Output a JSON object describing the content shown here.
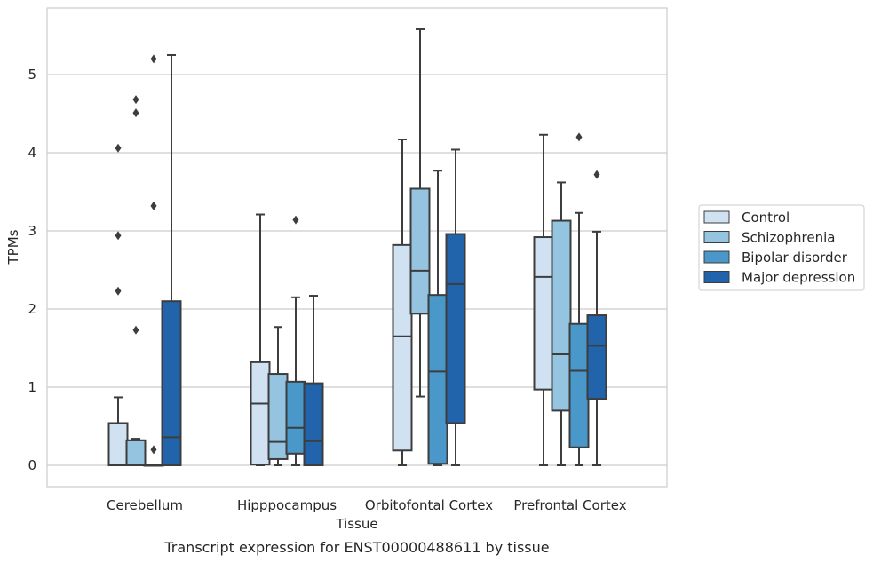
{
  "chart_data": {
    "type": "boxplot",
    "title": "",
    "caption": "Transcript expression for ENST00000488611 by tissue",
    "xlabel": "Tissue",
    "ylabel": "TPMs",
    "ylim": [
      -0.28,
      5.9
    ],
    "yticks": [
      0,
      1,
      2,
      3,
      4,
      5
    ],
    "grid": "horizontal",
    "legend_position": "right",
    "categories": [
      "Cerebellum",
      "Hipppocampus",
      "Orbitofontal Cortex",
      "Prefrontal Cortex"
    ],
    "series": [
      {
        "name": "Control",
        "color": "#d0e1f2",
        "boxes": [
          {
            "whislo": 0.0,
            "q1": 0.0,
            "med": 0.0,
            "q3": 0.54,
            "whishi": 0.87,
            "fliers": [
              2.23,
              2.94,
              4.06
            ]
          },
          {
            "whislo": 0.0,
            "q1": 0.01,
            "med": 0.79,
            "q3": 1.32,
            "whishi": 3.21,
            "fliers": []
          },
          {
            "whislo": 0.0,
            "q1": 0.19,
            "med": 1.65,
            "q3": 2.82,
            "whishi": 4.17,
            "fliers": []
          },
          {
            "whislo": 0.0,
            "q1": 0.97,
            "med": 2.41,
            "q3": 2.92,
            "whishi": 4.23,
            "fliers": []
          }
        ]
      },
      {
        "name": "Schizophrenia",
        "color": "#94c4df",
        "boxes": [
          {
            "whislo": 0.0,
            "q1": 0.0,
            "med": 0.32,
            "q3": 0.32,
            "whishi": 0.34,
            "fliers": [
              1.73,
              4.51,
              4.68
            ]
          },
          {
            "whislo": 0.0,
            "q1": 0.08,
            "med": 0.3,
            "q3": 1.17,
            "whishi": 1.77,
            "fliers": []
          },
          {
            "whislo": 0.88,
            "q1": 1.94,
            "med": 2.49,
            "q3": 3.54,
            "whishi": 5.58,
            "fliers": []
          },
          {
            "whislo": 0.0,
            "q1": 0.7,
            "med": 1.42,
            "q3": 3.13,
            "whishi": 3.62,
            "fliers": []
          }
        ]
      },
      {
        "name": "Bipolar disorder",
        "color": "#4a98c9",
        "boxes": [
          {
            "whislo": 0.0,
            "q1": 0.0,
            "med": 0.0,
            "q3": 0.0,
            "whishi": 0.0,
            "fliers": [
              0.2,
              3.32,
              5.2
            ]
          },
          {
            "whislo": 0.0,
            "q1": 0.15,
            "med": 0.48,
            "q3": 1.07,
            "whishi": 2.15,
            "fliers": [
              3.14
            ]
          },
          {
            "whislo": 0.0,
            "q1": 0.02,
            "med": 1.2,
            "q3": 2.18,
            "whishi": 3.77,
            "fliers": []
          },
          {
            "whislo": 0.0,
            "q1": 0.23,
            "med": 1.21,
            "q3": 1.81,
            "whishi": 3.23,
            "fliers": [
              4.2
            ]
          }
        ]
      },
      {
        "name": "Major depression",
        "color": "#2164ab",
        "boxes": [
          {
            "whislo": 0.0,
            "q1": 0.0,
            "med": 0.36,
            "q3": 2.1,
            "whishi": 5.25,
            "fliers": []
          },
          {
            "whislo": 0.0,
            "q1": 0.0,
            "med": 0.31,
            "q3": 1.05,
            "whishi": 2.17,
            "fliers": []
          },
          {
            "whislo": 0.0,
            "q1": 0.54,
            "med": 2.32,
            "q3": 2.96,
            "whishi": 4.04,
            "fliers": []
          },
          {
            "whislo": 0.0,
            "q1": 0.85,
            "med": 1.53,
            "q3": 1.92,
            "whishi": 2.99,
            "fliers": [
              3.72
            ]
          }
        ]
      }
    ]
  },
  "style": {
    "line_color": "#3d3d3d",
    "grid_color": "#cccccc",
    "frame_color": "#cccccc",
    "text_color": "#262626"
  }
}
